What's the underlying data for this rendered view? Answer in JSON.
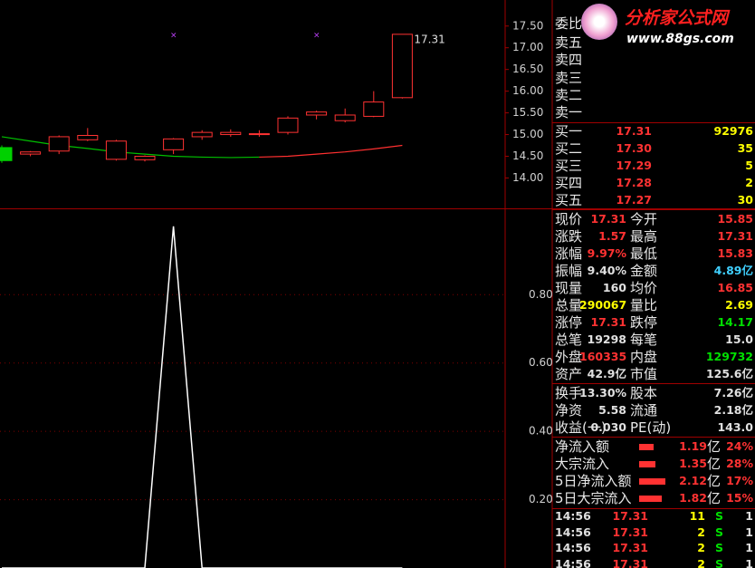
{
  "chart": {
    "type": "candlestick",
    "candles": [
      {
        "o": 14.7,
        "c": 14.4,
        "h": 14.75,
        "l": 14.35
      },
      {
        "o": 14.55,
        "c": 14.6,
        "h": 14.62,
        "l": 14.5
      },
      {
        "o": 14.62,
        "c": 14.95,
        "h": 14.98,
        "l": 14.55
      },
      {
        "o": 14.88,
        "c": 14.98,
        "h": 15.15,
        "l": 14.85
      },
      {
        "o": 14.43,
        "c": 14.85,
        "h": 14.88,
        "l": 14.4
      },
      {
        "o": 14.42,
        "c": 14.5,
        "h": 14.52,
        "l": 14.38
      },
      {
        "o": 14.65,
        "c": 14.9,
        "h": 14.92,
        "l": 14.55
      },
      {
        "o": 14.95,
        "c": 15.05,
        "h": 15.1,
        "l": 14.88
      },
      {
        "o": 15.0,
        "c": 15.05,
        "h": 15.12,
        "l": 14.95
      },
      {
        "o": 15.0,
        "c": 15.02,
        "h": 15.1,
        "l": 14.95
      },
      {
        "o": 15.05,
        "c": 15.38,
        "h": 15.42,
        "l": 15.0
      },
      {
        "o": 15.45,
        "c": 15.52,
        "h": 15.55,
        "l": 15.35
      },
      {
        "o": 15.32,
        "c": 15.45,
        "h": 15.6,
        "l": 15.28
      },
      {
        "o": 15.42,
        "c": 15.75,
        "h": 16.0,
        "l": 15.4
      },
      {
        "o": 15.85,
        "c": 17.31,
        "h": 17.31,
        "l": 15.83
      }
    ],
    "up_color": "#ff3232",
    "down_color": "#00d000",
    "ma": [
      {
        "color": "#00c000",
        "values": [
          14.95,
          14.85,
          14.75,
          14.68,
          14.6,
          14.55,
          14.5,
          14.48,
          14.47,
          14.48,
          null,
          null,
          null,
          null,
          null
        ]
      },
      {
        "color": "#ff3030",
        "values": [
          null,
          null,
          null,
          null,
          null,
          null,
          null,
          null,
          null,
          14.48,
          14.5,
          14.55,
          14.6,
          14.67,
          14.75
        ]
      }
    ],
    "high_label": "17.31",
    "ylim": [
      13.3,
      18.1
    ],
    "yticks": [
      {
        "value": 17.5,
        "label": "17.50"
      },
      {
        "value": 17,
        "label": "17.00"
      },
      {
        "value": 16.5,
        "label": "16.50"
      },
      {
        "value": 16,
        "label": "16.00"
      },
      {
        "value": 15.5,
        "label": "15.50"
      },
      {
        "value": 15,
        "label": "15.00"
      },
      {
        "value": 14.5,
        "label": "14.50"
      },
      {
        "value": 14,
        "label": "14.00"
      }
    ],
    "indicator": {
      "color": "#ffffff",
      "values": [
        0,
        0,
        0,
        0,
        0,
        0,
        1,
        0,
        0,
        0,
        0,
        0,
        0,
        0,
        0
      ],
      "ylim": [
        0,
        1.05
      ],
      "yticks": [
        {
          "value": 0.8,
          "label": "0.80"
        },
        {
          "value": 0.6,
          "label": "0.60"
        },
        {
          "value": 0.4,
          "label": "0.40"
        },
        {
          "value": 0.2,
          "label": "0.20"
        }
      ]
    }
  },
  "logo": {
    "title": "分析家公式网",
    "url": "www.88gs.com"
  },
  "quote": {
    "header": "委比",
    "asks": [
      "卖五",
      "卖四",
      "卖三",
      "卖二",
      "卖一"
    ],
    "bids": [
      {
        "label": "买一",
        "price": "17.31",
        "volume": "92976"
      },
      {
        "label": "买二",
        "price": "17.30",
        "volume": "35"
      },
      {
        "label": "买三",
        "price": "17.29",
        "volume": "5"
      },
      {
        "label": "买四",
        "price": "17.28",
        "volume": "2"
      },
      {
        "label": "买五",
        "price": "17.27",
        "volume": "30"
      }
    ],
    "stats": [
      [
        {
          "t": "现价",
          "v": "17.31",
          "c": "#ff3232"
        },
        {
          "t": "今开",
          "v": "15.85",
          "c": "#ff3232"
        }
      ],
      [
        {
          "t": "涨跌",
          "v": "1.57",
          "c": "#ff3232"
        },
        {
          "t": "最高",
          "v": "17.31",
          "c": "#ff3232"
        }
      ],
      [
        {
          "t": "涨幅",
          "v": "9.97%",
          "c": "#ff3232"
        },
        {
          "t": "最低",
          "v": "15.83",
          "c": "#ff3232"
        }
      ],
      [
        {
          "t": "振幅",
          "v": "9.40%",
          "c": "#e0e0e0"
        },
        {
          "t": "金额",
          "v": "4.89亿",
          "c": "#40d0ff"
        }
      ],
      [
        {
          "t": "现量",
          "v": "160",
          "c": "#e0e0e0"
        },
        {
          "t": "均价",
          "v": "16.85",
          "c": "#ff3232"
        }
      ],
      [
        {
          "t": "总量",
          "v": "290067",
          "c": "#ffff00"
        },
        {
          "t": "量比",
          "v": "2.69",
          "c": "#ffff00"
        }
      ],
      [
        {
          "t": "涨停",
          "v": "17.31",
          "c": "#ff3232"
        },
        {
          "t": "跌停",
          "v": "14.17",
          "c": "#00e000"
        }
      ],
      [
        {
          "t": "总笔",
          "v": "19298",
          "c": "#e0e0e0"
        },
        {
          "t": "每笔",
          "v": "15.0",
          "c": "#e0e0e0"
        }
      ],
      [
        {
          "t": "外盘",
          "v": "160335",
          "c": "#ff3232"
        },
        {
          "t": "内盘",
          "v": "129732",
          "c": "#00e000"
        }
      ],
      [
        {
          "t": "资产",
          "v": "42.9亿",
          "c": "#e0e0e0"
        },
        {
          "t": "市值",
          "v": "125.6亿",
          "c": "#e0e0e0"
        }
      ]
    ],
    "extra": [
      [
        {
          "t": "换手",
          "v": "13.30%",
          "c": "#e0e0e0"
        },
        {
          "t": "股本",
          "v": "7.26亿",
          "c": "#e0e0e0"
        }
      ],
      [
        {
          "t": "净资",
          "v": "5.58",
          "c": "#e0e0e0"
        },
        {
          "t": "流通",
          "v": "2.18亿",
          "c": "#e0e0e0"
        }
      ],
      [
        {
          "t": "收益(一)",
          "v": "0.030",
          "c": "#e0e0e0"
        },
        {
          "t": "PE(动)",
          "v": "143.0",
          "c": "#e0e0e0"
        }
      ]
    ],
    "flows": [
      {
        "label": "净流入额",
        "amount": 1.19,
        "unit": "亿",
        "pct": "24%"
      },
      {
        "label": "大宗流入",
        "amount": 1.35,
        "unit": "亿",
        "pct": "28%"
      },
      {
        "label": "5日净流入额",
        "amount": 2.12,
        "unit": "亿",
        "pct": "17%"
      },
      {
        "label": "5日大宗流入",
        "amount": 1.82,
        "unit": "亿",
        "pct": "15%"
      }
    ],
    "ticks": [
      {
        "time": "14:56",
        "price": "17.31",
        "volume": "11",
        "side": "S",
        "count": "1"
      },
      {
        "time": "14:56",
        "price": "17.31",
        "volume": "2",
        "side": "S",
        "count": "1"
      },
      {
        "time": "14:56",
        "price": "17.31",
        "volume": "2",
        "side": "S",
        "count": "1"
      },
      {
        "time": "14:56",
        "price": "17.31",
        "volume": "2",
        "side": "S",
        "count": "1"
      }
    ]
  }
}
